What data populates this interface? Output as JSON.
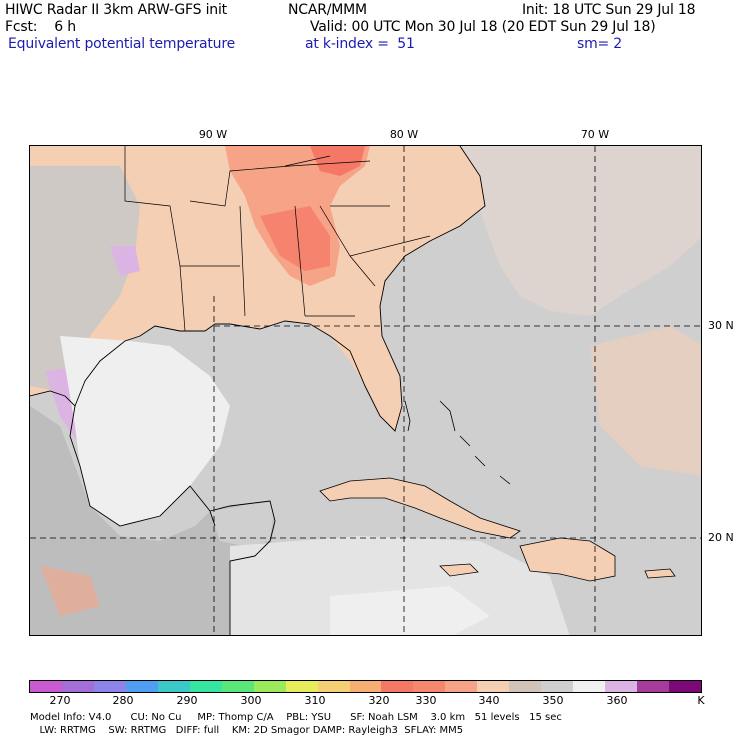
{
  "header": {
    "line1_left": "HIWC Radar II 3km ARW-GFS init",
    "line1_mid": "NCAR/MMM",
    "line1_right": "Init: 18 UTC Sun 29 Jul 18",
    "line2_left": "Fcst:    6 h",
    "line2_right": "Valid: 00 UTC Mon 30 Jul 18 (20 EDT Sun 29 Jul 18)",
    "line3_left": "Equivalent potential temperature",
    "line3_mid": "at k-index =  51",
    "line3_right": "sm= 2"
  },
  "map": {
    "lon_labels": [
      "90 W",
      "80 W",
      "70 W"
    ],
    "lat_labels": [
      "30 N",
      "20 N"
    ],
    "colors": {
      "ocean_gray": "#cfcfcf",
      "land_peach": "#f5cfb4",
      "warm_orange": "#f7a387",
      "hot_red": "#f47865",
      "cool_white": "#efefef",
      "cold_lilac": "#dcb4e4",
      "mid_gray": "#bdbdbd"
    }
  },
  "colorbar": {
    "colors": [
      "#c85ad2",
      "#a36ed8",
      "#8c84e8",
      "#4f9ef0",
      "#3cc8c8",
      "#36e6a0",
      "#5ae678",
      "#9bea5c",
      "#e6ec5a",
      "#f5cf73",
      "#f7ae73",
      "#f47865",
      "#f5876c",
      "#f7a387",
      "#f5cfb4",
      "#d2c3b9",
      "#cfcfcf",
      "#f0f0f0",
      "#dcb4e4",
      "#a53c9b",
      "#7b0a78"
    ],
    "labels": [
      "270",
      "280",
      "290",
      "300",
      "310",
      "320",
      "330",
      "340",
      "350",
      "360",
      "K"
    ]
  },
  "footer": {
    "line1": "Model Info: V4.0      CU: No Cu     MP: Thomp C/A    PBL: YSU      SF: Noah LSM    3.0 km   51 levels   15 sec",
    "line2": "   LW: RRTMG    SW: RRTMG   DIFF: full    KM: 2D Smagor DAMP: Rayleigh3  SFLAY: MM5"
  }
}
